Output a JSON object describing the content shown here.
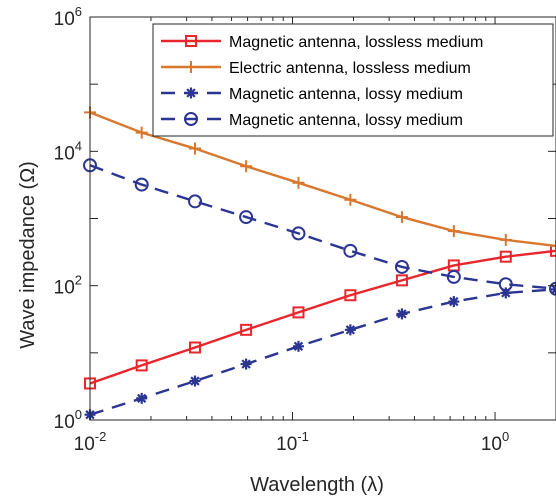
{
  "chart_data": {
    "type": "line",
    "x_scale": "log",
    "y_scale": "log",
    "xlim": [
      0.01,
      2
    ],
    "ylim": [
      1,
      1000000
    ],
    "xlabel": "Wavelength (λ)",
    "ylabel": "Wave impedance (Ω)",
    "x_ticks": [
      {
        "value": 0.01,
        "base": "10",
        "exp": "-2"
      },
      {
        "value": 0.1,
        "base": "10",
        "exp": "-1"
      },
      {
        "value": 1,
        "base": "10",
        "exp": "0"
      }
    ],
    "y_ticks": [
      {
        "value": 1,
        "base": "10",
        "exp": "0"
      },
      {
        "value": 100,
        "base": "10",
        "exp": "2"
      },
      {
        "value": 10000,
        "base": "10",
        "exp": "4"
      },
      {
        "value": 1000000,
        "base": "10",
        "exp": "6"
      }
    ],
    "grid": false,
    "legend_position": "top-right",
    "series": [
      {
        "name": "Magnetic antenna, lossless medium",
        "color": "#e8262b",
        "line_style": "solid",
        "marker": "square",
        "x": [
          0.01,
          0.018,
          0.033,
          0.059,
          0.107,
          0.193,
          0.347,
          0.626,
          1.13,
          2.0
        ],
        "y": [
          3.5,
          6.5,
          12,
          22,
          40,
          72,
          120,
          200,
          270,
          330
        ]
      },
      {
        "name": "Electric antenna, lossless medium",
        "color": "#d9772f",
        "line_style": "solid",
        "marker": "plus",
        "x": [
          0.01,
          0.018,
          0.033,
          0.059,
          0.107,
          0.193,
          0.347,
          0.626,
          1.13,
          2.0
        ],
        "y": [
          38000,
          19000,
          11000,
          6000,
          3400,
          1900,
          1050,
          650,
          480,
          390
        ]
      },
      {
        "name": "Magnetic antenna, lossy medium",
        "color": "#2b3593",
        "line_style": "dashed",
        "marker": "asterisk",
        "x": [
          0.01,
          0.018,
          0.033,
          0.059,
          0.107,
          0.193,
          0.347,
          0.626,
          1.13,
          2.0
        ],
        "y": [
          1.2,
          2.1,
          3.8,
          6.8,
          12.5,
          22,
          38,
          58,
          78,
          88
        ]
      },
      {
        "name": "Magnetic antenna, lossy medium",
        "color": "#2b3593",
        "line_style": "dashed",
        "marker": "circle",
        "x": [
          0.01,
          0.018,
          0.033,
          0.059,
          0.107,
          0.193,
          0.347,
          0.626,
          1.13,
          2.0
        ],
        "y": [
          6200,
          3200,
          1800,
          1050,
          600,
          330,
          190,
          135,
          105,
          90
        ]
      }
    ]
  }
}
